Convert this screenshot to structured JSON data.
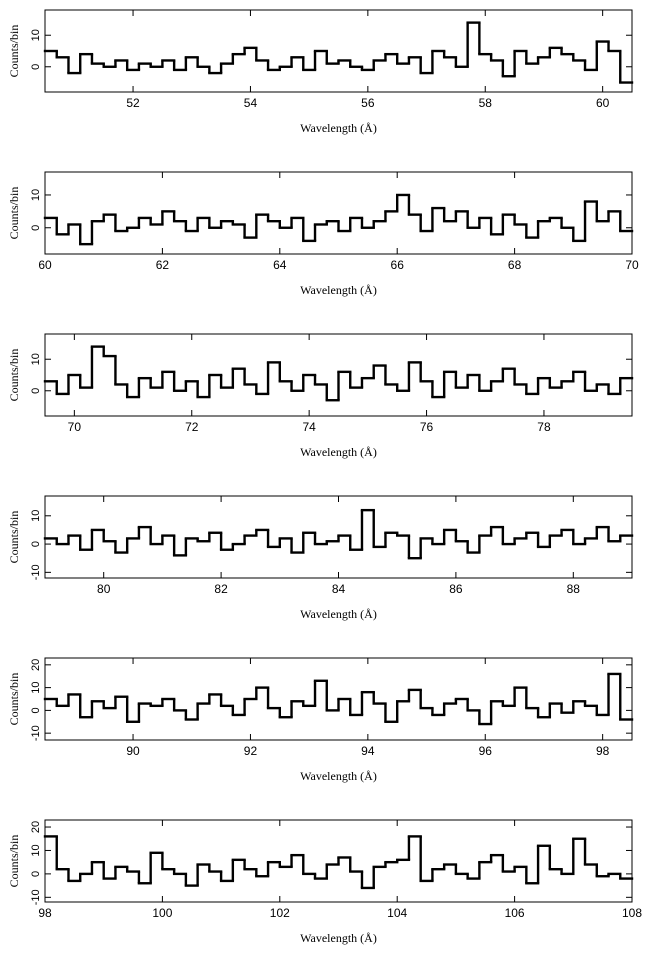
{
  "chart_data": [
    {
      "type": "step",
      "xlabel": "Wavelength (Å)",
      "ylabel": "Counts/bin",
      "color": "#000000",
      "xlim": [
        50.5,
        60.5
      ],
      "xticks": [
        52,
        54,
        56,
        58,
        60
      ],
      "ylim": [
        -8,
        18
      ],
      "yticks": [
        0,
        10
      ],
      "x": [
        50.6,
        50.8,
        51.0,
        51.2,
        51.4,
        51.6,
        51.8,
        52.0,
        52.2,
        52.4,
        52.6,
        52.8,
        53.0,
        53.2,
        53.4,
        53.6,
        53.8,
        54.0,
        54.2,
        54.4,
        54.6,
        54.8,
        55.0,
        55.2,
        55.4,
        55.6,
        55.8,
        56.0,
        56.2,
        56.4,
        56.6,
        56.8,
        57.0,
        57.2,
        57.4,
        57.6,
        57.8,
        58.0,
        58.2,
        58.4,
        58.6,
        58.8,
        59.0,
        59.2,
        59.4,
        59.6,
        59.8,
        60.0,
        60.2,
        60.4
      ],
      "values": [
        5,
        3,
        -2,
        4,
        1,
        0,
        2,
        -1,
        1,
        0,
        2,
        -1,
        3,
        0,
        -2,
        1,
        4,
        6,
        2,
        -1,
        0,
        3,
        -1,
        5,
        1,
        2,
        0,
        -1,
        2,
        4,
        1,
        3,
        -2,
        5,
        3,
        0,
        14,
        4,
        2,
        -3,
        5,
        1,
        3,
        6,
        4,
        2,
        -1,
        8,
        5,
        -5
      ]
    },
    {
      "type": "step",
      "xlabel": "Wavelength (Å)",
      "ylabel": "Counts/bin",
      "color": "#000000",
      "xlim": [
        60,
        70
      ],
      "xticks": [
        60,
        62,
        64,
        66,
        68,
        70
      ],
      "ylim": [
        -8,
        17
      ],
      "yticks": [
        0,
        10
      ],
      "x": [
        60.1,
        60.3,
        60.5,
        60.7,
        60.9,
        61.1,
        61.3,
        61.5,
        61.7,
        61.9,
        62.1,
        62.3,
        62.5,
        62.7,
        62.9,
        63.1,
        63.3,
        63.5,
        63.7,
        63.9,
        64.1,
        64.3,
        64.5,
        64.7,
        64.9,
        65.1,
        65.3,
        65.5,
        65.7,
        65.9,
        66.1,
        66.3,
        66.5,
        66.7,
        66.9,
        67.1,
        67.3,
        67.5,
        67.7,
        67.9,
        68.1,
        68.3,
        68.5,
        68.7,
        68.9,
        69.1,
        69.3,
        69.5,
        69.7,
        69.9
      ],
      "values": [
        3,
        -2,
        1,
        -5,
        2,
        4,
        -1,
        0,
        3,
        1,
        5,
        2,
        -1,
        3,
        0,
        2,
        1,
        -3,
        4,
        2,
        0,
        3,
        -4,
        1,
        2,
        -1,
        3,
        0,
        2,
        5,
        10,
        4,
        -1,
        6,
        2,
        5,
        0,
        3,
        -2,
        4,
        1,
        -3,
        2,
        3,
        0,
        -4,
        8,
        2,
        5,
        -1
      ]
    },
    {
      "type": "step",
      "xlabel": "Wavelength (Å)",
      "ylabel": "Counts/bin",
      "color": "#000000",
      "xlim": [
        69.5,
        79.5
      ],
      "xticks": [
        70,
        72,
        74,
        76,
        78
      ],
      "ylim": [
        -8,
        18
      ],
      "yticks": [
        0,
        10
      ],
      "x": [
        69.6,
        69.8,
        70.0,
        70.2,
        70.4,
        70.6,
        70.8,
        71.0,
        71.2,
        71.4,
        71.6,
        71.8,
        72.0,
        72.2,
        72.4,
        72.6,
        72.8,
        73.0,
        73.2,
        73.4,
        73.6,
        73.8,
        74.0,
        74.2,
        74.4,
        74.6,
        74.8,
        75.0,
        75.2,
        75.4,
        75.6,
        75.8,
        76.0,
        76.2,
        76.4,
        76.6,
        76.8,
        77.0,
        77.2,
        77.4,
        77.6,
        77.8,
        78.0,
        78.2,
        78.4,
        78.6,
        78.8,
        79.0,
        79.2,
        79.4
      ],
      "values": [
        3,
        -1,
        5,
        1,
        14,
        11,
        2,
        -2,
        4,
        1,
        6,
        0,
        3,
        -2,
        5,
        1,
        7,
        2,
        -1,
        9,
        3,
        0,
        5,
        2,
        -3,
        6,
        1,
        4,
        8,
        2,
        0,
        9,
        3,
        -2,
        6,
        1,
        5,
        0,
        3,
        7,
        2,
        -1,
        4,
        1,
        3,
        6,
        0,
        2,
        -1,
        4
      ]
    },
    {
      "type": "step",
      "xlabel": "Wavelength (Å)",
      "ylabel": "Counts/bin",
      "color": "#000000",
      "xlim": [
        79,
        89
      ],
      "xticks": [
        80,
        82,
        84,
        86,
        88
      ],
      "ylim": [
        -12,
        17
      ],
      "yticks": [
        -10,
        0,
        10
      ],
      "x": [
        79.1,
        79.3,
        79.5,
        79.7,
        79.9,
        80.1,
        80.3,
        80.5,
        80.7,
        80.9,
        81.1,
        81.3,
        81.5,
        81.7,
        81.9,
        82.1,
        82.3,
        82.5,
        82.7,
        82.9,
        83.1,
        83.3,
        83.5,
        83.7,
        83.9,
        84.1,
        84.3,
        84.5,
        84.7,
        84.9,
        85.1,
        85.3,
        85.5,
        85.7,
        85.9,
        86.1,
        86.3,
        86.5,
        86.7,
        86.9,
        87.1,
        87.3,
        87.5,
        87.7,
        87.9,
        88.1,
        88.3,
        88.5,
        88.7,
        88.9
      ],
      "values": [
        2,
        0,
        3,
        -2,
        5,
        1,
        -3,
        2,
        6,
        0,
        3,
        -4,
        2,
        1,
        4,
        -2,
        0,
        3,
        5,
        -1,
        2,
        -3,
        4,
        0,
        1,
        3,
        -2,
        12,
        -1,
        4,
        3,
        -5,
        2,
        0,
        5,
        1,
        -3,
        3,
        6,
        0,
        2,
        4,
        -1,
        3,
        5,
        0,
        2,
        6,
        1,
        3
      ]
    },
    {
      "type": "step",
      "xlabel": "Wavelength (Å)",
      "ylabel": "Counts/bin",
      "color": "#000000",
      "xlim": [
        88.5,
        98.5
      ],
      "xticks": [
        90,
        92,
        94,
        96,
        98
      ],
      "ylim": [
        -13,
        23
      ],
      "yticks": [
        -10,
        0,
        10,
        20
      ],
      "x": [
        88.6,
        88.8,
        89.0,
        89.2,
        89.4,
        89.6,
        89.8,
        90.0,
        90.2,
        90.4,
        90.6,
        90.8,
        91.0,
        91.2,
        91.4,
        91.6,
        91.8,
        92.0,
        92.2,
        92.4,
        92.6,
        92.8,
        93.0,
        93.2,
        93.4,
        93.6,
        93.8,
        94.0,
        94.2,
        94.4,
        94.6,
        94.8,
        95.0,
        95.2,
        95.4,
        95.6,
        95.8,
        96.0,
        96.2,
        96.4,
        96.6,
        96.8,
        97.0,
        97.2,
        97.4,
        97.6,
        97.8,
        98.0,
        98.2,
        98.4
      ],
      "values": [
        5,
        2,
        7,
        -3,
        4,
        1,
        6,
        -5,
        3,
        2,
        5,
        0,
        -4,
        3,
        7,
        2,
        -2,
        5,
        10,
        1,
        -3,
        4,
        2,
        13,
        0,
        5,
        -2,
        8,
        3,
        -5,
        4,
        9,
        1,
        -2,
        3,
        5,
        0,
        -6,
        4,
        2,
        10,
        1,
        -3,
        3,
        -1,
        4,
        2,
        -2,
        16,
        -4
      ]
    },
    {
      "type": "step",
      "xlabel": "Wavelength (Å)",
      "ylabel": "Counts/bin",
      "color": "#000000",
      "xlim": [
        98,
        108
      ],
      "xticks": [
        98,
        100,
        102,
        104,
        106,
        108
      ],
      "ylim": [
        -12,
        23
      ],
      "yticks": [
        -10,
        0,
        10,
        20
      ],
      "x": [
        98.1,
        98.3,
        98.5,
        98.7,
        98.9,
        99.1,
        99.3,
        99.5,
        99.7,
        99.9,
        100.1,
        100.3,
        100.5,
        100.7,
        100.9,
        101.1,
        101.3,
        101.5,
        101.7,
        101.9,
        102.1,
        102.3,
        102.5,
        102.7,
        102.9,
        103.1,
        103.3,
        103.5,
        103.7,
        103.9,
        104.1,
        104.3,
        104.5,
        104.7,
        104.9,
        105.1,
        105.3,
        105.5,
        105.7,
        105.9,
        106.1,
        106.3,
        106.5,
        106.7,
        106.9,
        107.1,
        107.3,
        107.5,
        107.7,
        107.9
      ],
      "values": [
        16,
        2,
        -3,
        0,
        5,
        -2,
        3,
        1,
        -4,
        9,
        2,
        0,
        -5,
        4,
        1,
        -3,
        6,
        2,
        -1,
        5,
        3,
        8,
        0,
        -2,
        4,
        7,
        1,
        -6,
        3,
        5,
        6,
        16,
        -3,
        2,
        4,
        0,
        -2,
        5,
        8,
        1,
        3,
        -4,
        12,
        2,
        0,
        15,
        4,
        -1,
        0,
        -2
      ]
    }
  ]
}
